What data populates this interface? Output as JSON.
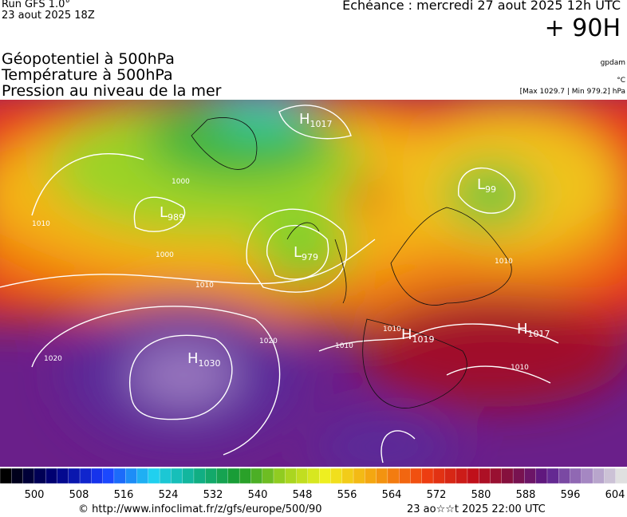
{
  "header": {
    "run": "Run GFS 1.0°",
    "run_date": "23 aout 2025 18Z",
    "forecast": "Echéance : mercredi 27 aout 2025 12h UTC",
    "lead": "+ 90H",
    "fields": [
      "Géopotentiel à 500hPa",
      "Température à 500hPa",
      "Pression au niveau de la mer"
    ],
    "units": [
      "gpdam",
      "°C",
      "[Max 1029.7 | Min 979.2] hPa"
    ]
  },
  "centers": [
    {
      "kind": "H",
      "value": "1017"
    },
    {
      "kind": "L",
      "value": "989"
    },
    {
      "kind": "L",
      "value": "979"
    },
    {
      "kind": "L",
      "value": "99"
    },
    {
      "kind": "H",
      "value": "1030"
    },
    {
      "kind": "H",
      "value": "1019"
    },
    {
      "kind": "H",
      "value": "1017"
    }
  ],
  "isobar_labels": [
    "1010",
    "1000",
    "1010",
    "1020",
    "1020",
    "1010",
    "1010",
    "1010",
    "1000",
    "1010"
  ],
  "colorbar": {
    "ticks": [
      500,
      508,
      516,
      524,
      532,
      540,
      548,
      556,
      564,
      572,
      580,
      588,
      596,
      604
    ]
  },
  "footer": {
    "source": "© http://www.infoclimat.fr/z/gfs/europe/500/90",
    "created": "23 ao☆☆t 2025 22:00 UTC"
  }
}
